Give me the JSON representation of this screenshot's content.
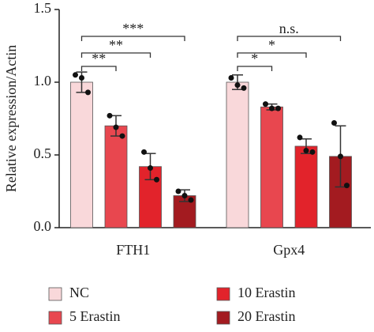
{
  "chart_data": {
    "type": "bar",
    "y_label": "Relative expression/Actin",
    "categories": [
      "FTH1",
      "Gpx4"
    ],
    "ylim": [
      0,
      1.5
    ],
    "yticks": [
      {
        "value": 0,
        "label": "0.0"
      },
      {
        "value": 0.5,
        "label": "0.5"
      },
      {
        "value": 1,
        "label": "1.0"
      },
      {
        "value": 1.5,
        "label": "1.5"
      }
    ],
    "series": [
      {
        "name": "NC",
        "color": "#f9d8da",
        "values": [
          1.0,
          1.0
        ],
        "errors": [
          0.07,
          0.05
        ],
        "points": [
          [
            1.05,
            1.03,
            0.93
          ],
          [
            1.03,
            0.98,
            0.96
          ]
        ]
      },
      {
        "name": "5 Erastin",
        "color": "#e8474f",
        "values": [
          0.7,
          0.83
        ],
        "errors": [
          0.07,
          0.02
        ],
        "points": [
          [
            0.77,
            0.69,
            0.63
          ],
          [
            0.85,
            0.82,
            0.82
          ]
        ]
      },
      {
        "name": "10 Erastin",
        "color": "#e2232b",
        "values": [
          0.42,
          0.56
        ],
        "errors": [
          0.09,
          0.05
        ],
        "points": [
          [
            0.52,
            0.41,
            0.33
          ],
          [
            0.62,
            0.53,
            0.52
          ]
        ]
      },
      {
        "name": "20 Erastin",
        "color": "#a31b20",
        "values": [
          0.22,
          0.49
        ],
        "errors": [
          0.04,
          0.21
        ],
        "points": [
          [
            0.25,
            0.22,
            0.19
          ],
          [
            0.72,
            0.49,
            0.29
          ]
        ]
      }
    ],
    "annotations": [
      [
        "**",
        "**",
        "***"
      ],
      [
        "*",
        "*",
        "n.s."
      ]
    ]
  }
}
